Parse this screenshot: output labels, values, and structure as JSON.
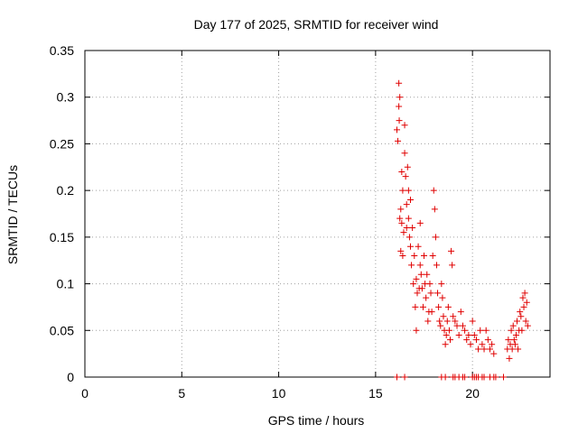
{
  "chart_data": {
    "type": "scatter",
    "title": "Day 177 of 2025, SRMTID for receiver wind",
    "xlabel": "GPS time / hours",
    "ylabel": "SRMTID / TECUs",
    "xlim": [
      0,
      24
    ],
    "ylim": [
      0,
      0.35
    ],
    "x_ticks": [
      0,
      5,
      10,
      15,
      20
    ],
    "x_tick_labels": [
      "0",
      "5",
      "10",
      "15",
      "20"
    ],
    "y_ticks": [
      0,
      0.05,
      0.1,
      0.15,
      0.2,
      0.25,
      0.3,
      0.35
    ],
    "y_tick_labels": [
      "0",
      "0.05",
      "0.1",
      "0.15",
      "0.2",
      "0.25",
      "0.3",
      "0.35"
    ],
    "grid": true,
    "marker": "+",
    "series": [
      {
        "name": "SRMTID",
        "color": "#e00000",
        "x": [
          16.1,
          16.15,
          16.2,
          16.2,
          16.22,
          16.25,
          16.25,
          16.3,
          16.3,
          16.35,
          16.35,
          16.4,
          16.4,
          16.45,
          16.5,
          16.5,
          16.55,
          16.6,
          16.6,
          16.65,
          16.7,
          16.7,
          16.75,
          16.8,
          16.8,
          16.85,
          16.9,
          16.95,
          17.0,
          17.05,
          17.1,
          17.1,
          17.15,
          17.2,
          17.25,
          17.3,
          17.3,
          17.35,
          17.4,
          17.45,
          17.5,
          17.55,
          17.6,
          17.65,
          17.7,
          17.75,
          17.8,
          17.85,
          17.9,
          17.95,
          18.0,
          18.05,
          18.1,
          18.15,
          18.2,
          18.25,
          18.3,
          18.35,
          18.4,
          18.45,
          18.5,
          18.55,
          18.6,
          18.65,
          18.7,
          18.75,
          18.8,
          18.85,
          18.9,
          18.95,
          19.0,
          19.1,
          19.2,
          19.3,
          19.4,
          19.5,
          19.6,
          19.7,
          19.8,
          19.9,
          20.0,
          20.1,
          20.2,
          20.3,
          20.4,
          20.5,
          20.6,
          20.7,
          20.8,
          20.9,
          21.0,
          21.1,
          21.8,
          21.85,
          21.9,
          21.95,
          22.0,
          22.05,
          22.1,
          22.15,
          22.2,
          22.25,
          22.3,
          22.35,
          22.4,
          22.45,
          22.5,
          22.55,
          22.6,
          22.65,
          22.7,
          22.75,
          22.8,
          22.85,
          16.1,
          16.5,
          18.4,
          18.6,
          19.0,
          19.1,
          19.3,
          19.5,
          19.6,
          20.0,
          20.1,
          20.2,
          20.3,
          20.5,
          20.6,
          20.9,
          21.1,
          21.2,
          21.6
        ],
        "y": [
          0.265,
          0.253,
          0.29,
          0.315,
          0.275,
          0.3,
          0.17,
          0.18,
          0.135,
          0.22,
          0.165,
          0.2,
          0.13,
          0.155,
          0.27,
          0.24,
          0.215,
          0.185,
          0.16,
          0.225,
          0.2,
          0.17,
          0.15,
          0.19,
          0.14,
          0.12,
          0.16,
          0.1,
          0.13,
          0.075,
          0.105,
          0.05,
          0.09,
          0.14,
          0.095,
          0.165,
          0.12,
          0.11,
          0.095,
          0.075,
          0.13,
          0.1,
          0.085,
          0.11,
          0.06,
          0.07,
          0.1,
          0.09,
          0.07,
          0.13,
          0.2,
          0.18,
          0.15,
          0.12,
          0.09,
          0.075,
          0.06,
          0.055,
          0.1,
          0.085,
          0.065,
          0.05,
          0.035,
          0.045,
          0.06,
          0.075,
          0.05,
          0.04,
          0.135,
          0.12,
          0.065,
          0.06,
          0.055,
          0.045,
          0.07,
          0.055,
          0.05,
          0.04,
          0.045,
          0.035,
          0.06,
          0.045,
          0.04,
          0.03,
          0.05,
          0.035,
          0.03,
          0.05,
          0.04,
          0.03,
          0.035,
          0.025,
          0.03,
          0.04,
          0.02,
          0.035,
          0.05,
          0.03,
          0.055,
          0.04,
          0.035,
          0.045,
          0.06,
          0.03,
          0.05,
          0.07,
          0.065,
          0.05,
          0.085,
          0.075,
          0.09,
          0.06,
          0.08,
          0.055,
          0.0,
          0.0,
          0.0,
          0.0,
          0.0,
          0.0,
          0.0,
          0.0,
          0.0,
          0.0,
          0.0,
          0.0,
          0.0,
          0.0,
          0.0,
          0.0,
          0.0,
          0.0,
          0.0
        ]
      }
    ]
  }
}
